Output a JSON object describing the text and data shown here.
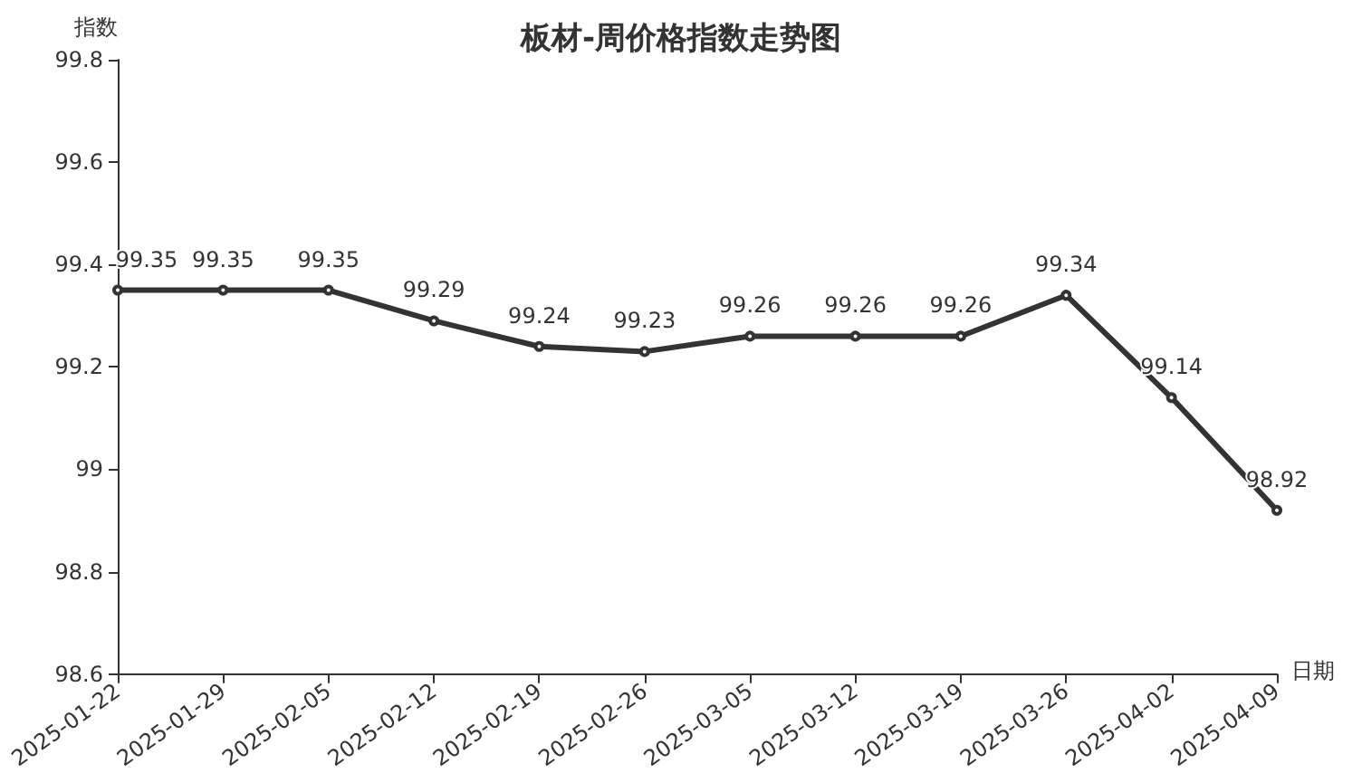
{
  "chart_data": {
    "type": "line",
    "title": "板材-周价格指数走势图",
    "xlabel": "日期",
    "ylabel": "指数",
    "categories": [
      "2025-01-22",
      "2025-01-29",
      "2025-02-05",
      "2025-02-12",
      "2025-02-19",
      "2025-02-26",
      "2025-03-05",
      "2025-03-12",
      "2025-03-19",
      "2025-03-26",
      "2025-04-02",
      "2025-04-09"
    ],
    "series": [
      {
        "color": "#333333",
        "values": [
          99.35,
          99.35,
          99.35,
          99.29,
          99.24,
          99.23,
          99.26,
          99.26,
          99.26,
          99.34,
          99.14,
          98.92
        ]
      }
    ],
    "ylim": [
      98.6,
      99.8
    ],
    "yticks": [
      98.6,
      98.8,
      99,
      99.2,
      99.4,
      99.6,
      99.8
    ],
    "data_labels": true,
    "marker": "circle",
    "line_style": "solid",
    "grid": false
  }
}
